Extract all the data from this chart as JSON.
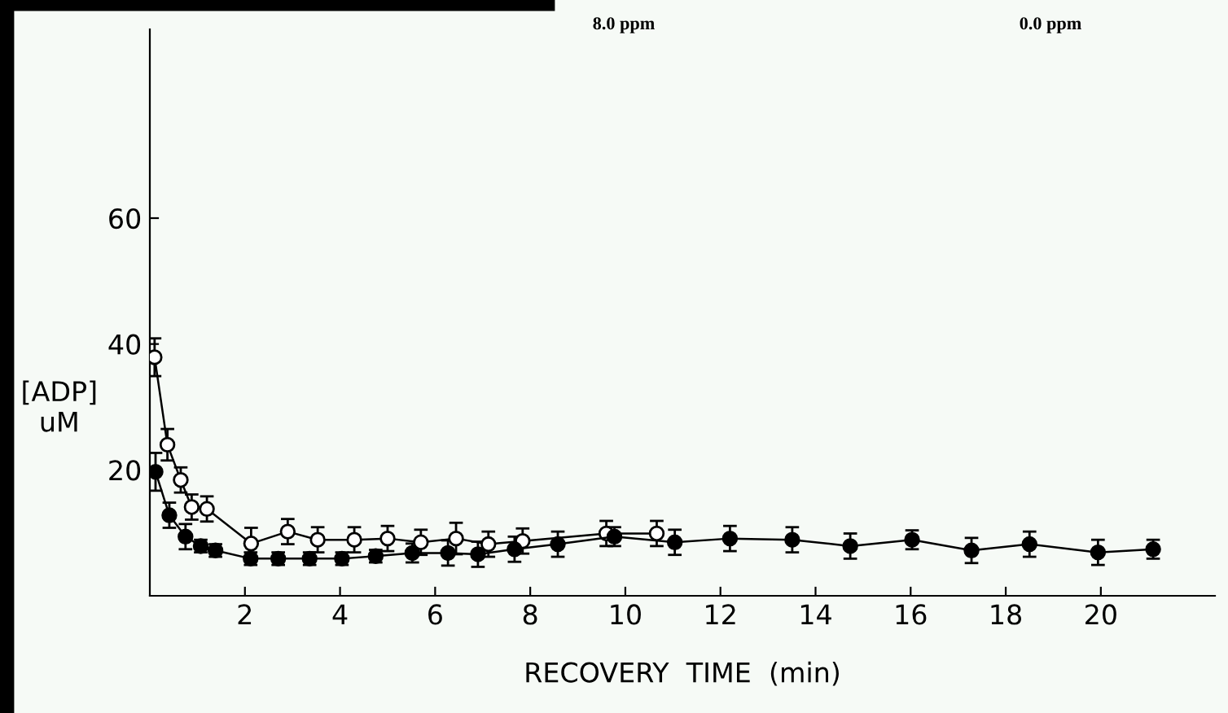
{
  "chart_data": {
    "type": "line",
    "xlabel": "RECOVERY  TIME  (min)",
    "ylabel": "[ADP]\nuM",
    "annotations": [
      "8.0 ppm",
      "0.0 ppm"
    ],
    "xlim": [
      0,
      22.4
    ],
    "xticks": [
      2,
      4,
      6,
      8,
      10,
      12,
      14,
      16,
      18,
      20
    ],
    "ylim": [
      0,
      90
    ],
    "yticks": [
      20,
      40,
      60
    ],
    "grid": false,
    "legend": false,
    "marker": "circle",
    "line_style": "solid",
    "series": [
      {
        "color": "#000000",
        "x": [
          0.1,
          0.37,
          0.65,
          0.88,
          1.2,
          2.13,
          2.9,
          3.53,
          4.3,
          5.0,
          5.7,
          6.44,
          7.12,
          7.84,
          9.6,
          10.66
        ],
        "values": [
          37.9,
          24,
          18.4,
          14.1,
          13.8,
          8.3,
          10.2,
          8.9,
          8.9,
          9.1,
          8.5,
          9.1,
          8.2,
          8.7,
          9.9,
          9.9
        ],
        "errors": [
          3,
          2.5,
          2,
          2,
          2,
          2.5,
          2,
          2,
          2,
          2,
          2,
          2.5,
          2,
          2,
          2,
          2
        ]
      },
      {
        "color": "#000000",
        "x": [
          0.12,
          0.41,
          0.75,
          1.07,
          1.38,
          2.12,
          2.7,
          3.36,
          4.04,
          4.75,
          5.52,
          6.27,
          6.9,
          7.67,
          8.58,
          9.77,
          11.04,
          12.2,
          13.51,
          14.73,
          16.03,
          17.28,
          18.5,
          19.94,
          21.1
        ],
        "values": [
          19.7,
          12.8,
          9.4,
          7.9,
          7.2,
          5.9,
          5.9,
          5.9,
          5.9,
          6.3,
          6.8,
          6.8,
          6.6,
          7.4,
          8.2,
          9.4,
          8.5,
          9.1,
          8.9,
          7.9,
          8.9,
          7.2,
          8.2,
          6.9,
          7.4
        ],
        "errors": [
          3,
          2,
          2,
          1,
          1,
          1,
          1,
          1,
          1,
          1,
          1.5,
          2,
          2,
          2,
          2,
          1.5,
          2,
          2,
          2,
          2,
          1.5,
          2,
          2,
          2,
          1.5
        ]
      }
    ]
  }
}
